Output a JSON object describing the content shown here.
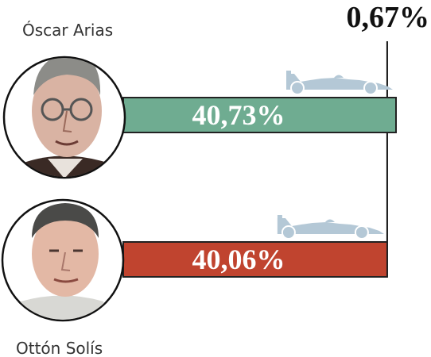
{
  "chart_data": {
    "type": "bar",
    "categories": [
      "Óscar Arias",
      "Ottón Solís"
    ],
    "values": [
      40.73,
      40.06
    ],
    "value_labels": [
      "40,73%",
      "40,06%"
    ],
    "margin_label": "0,67%",
    "colors": [
      "#6fac91",
      "#c0442f"
    ],
    "xlim": [
      0,
      41
    ]
  },
  "candidates": [
    {
      "name": "Óscar Arias",
      "portrait": "oscar-arias-portrait",
      "icon": "race-car-icon"
    },
    {
      "name": "Ottón Solís",
      "portrait": "otton-solis-portrait",
      "icon": "race-car-icon"
    }
  ]
}
